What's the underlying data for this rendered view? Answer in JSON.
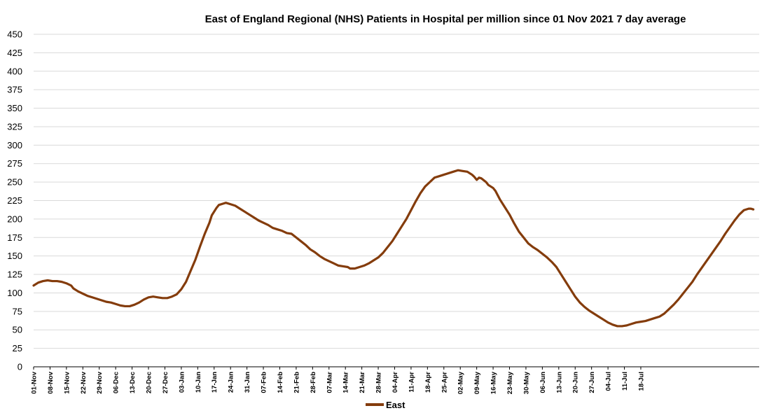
{
  "chart_data": {
    "type": "line",
    "title": "East of England Regional (NHS) Patients in Hospital per million since 01 Nov 2021 7 day average",
    "xlabel": "",
    "ylabel": "",
    "ylim": [
      0,
      450
    ],
    "ytick_step": 25,
    "x_ticks": [
      "01-Nov",
      "08-Nov",
      "15-Nov",
      "22-Nov",
      "29-Nov",
      "06-Dec",
      "13-Dec",
      "20-Dec",
      "27-Dec",
      "03-Jan",
      "10-Jan",
      "17-Jan",
      "24-Jan",
      "31-Jan",
      "07-Feb",
      "14-Feb",
      "21-Feb",
      "28-Feb",
      "07-Mar",
      "14-Mar",
      "21-Mar",
      "28-Mar",
      "04-Apr",
      "11-Apr",
      "18-Apr",
      "25-Apr",
      "02-May",
      "09-May",
      "16-May",
      "23-May",
      "30-May",
      "06-Jun",
      "13-Jun",
      "20-Jun",
      "27-Jun",
      "04-Jul",
      "11-Jul",
      "18-Jul"
    ],
    "legend_position": "bottom",
    "series": [
      {
        "name": "East",
        "color": "#843C0C",
        "points": [
          [
            0,
            110
          ],
          [
            2,
            114
          ],
          [
            4,
            116
          ],
          [
            6,
            117
          ],
          [
            8,
            116
          ],
          [
            10,
            116
          ],
          [
            12,
            115
          ],
          [
            14,
            113
          ],
          [
            16,
            110
          ],
          [
            17,
            106
          ],
          [
            19,
            102
          ],
          [
            21,
            99
          ],
          [
            23,
            96
          ],
          [
            25,
            94
          ],
          [
            27,
            92
          ],
          [
            29,
            90
          ],
          [
            31,
            88
          ],
          [
            33,
            87
          ],
          [
            35,
            85
          ],
          [
            37,
            83
          ],
          [
            39,
            82
          ],
          [
            41,
            82
          ],
          [
            43,
            84
          ],
          [
            45,
            87
          ],
          [
            47,
            91
          ],
          [
            49,
            94
          ],
          [
            51,
            95
          ],
          [
            53,
            94
          ],
          [
            55,
            93
          ],
          [
            57,
            93
          ],
          [
            59,
            95
          ],
          [
            61,
            98
          ],
          [
            63,
            105
          ],
          [
            65,
            115
          ],
          [
            67,
            130
          ],
          [
            69,
            145
          ],
          [
            71,
            163
          ],
          [
            73,
            180
          ],
          [
            75,
            195
          ],
          [
            76,
            205
          ],
          [
            78,
            215
          ],
          [
            79,
            219
          ],
          [
            81,
            221
          ],
          [
            82,
            222
          ],
          [
            84,
            220
          ],
          [
            86,
            218
          ],
          [
            88,
            214
          ],
          [
            90,
            210
          ],
          [
            92,
            206
          ],
          [
            94,
            202
          ],
          [
            96,
            198
          ],
          [
            98,
            195
          ],
          [
            100,
            192
          ],
          [
            102,
            188
          ],
          [
            104,
            186
          ],
          [
            106,
            184
          ],
          [
            108,
            181
          ],
          [
            110,
            180
          ],
          [
            112,
            175
          ],
          [
            114,
            170
          ],
          [
            116,
            165
          ],
          [
            118,
            159
          ],
          [
            120,
            155
          ],
          [
            122,
            150
          ],
          [
            124,
            146
          ],
          [
            126,
            143
          ],
          [
            128,
            140
          ],
          [
            130,
            137
          ],
          [
            132,
            136
          ],
          [
            134,
            135
          ],
          [
            135,
            133
          ],
          [
            137,
            133
          ],
          [
            139,
            135
          ],
          [
            141,
            137
          ],
          [
            143,
            140
          ],
          [
            145,
            144
          ],
          [
            147,
            148
          ],
          [
            149,
            154
          ],
          [
            151,
            162
          ],
          [
            153,
            170
          ],
          [
            155,
            180
          ],
          [
            157,
            190
          ],
          [
            159,
            200
          ],
          [
            161,
            212
          ],
          [
            163,
            224
          ],
          [
            165,
            235
          ],
          [
            167,
            244
          ],
          [
            169,
            250
          ],
          [
            171,
            256
          ],
          [
            173,
            258
          ],
          [
            175,
            260
          ],
          [
            177,
            262
          ],
          [
            179,
            264
          ],
          [
            181,
            266
          ],
          [
            183,
            265
          ],
          [
            185,
            264
          ],
          [
            187,
            260
          ],
          [
            188,
            257
          ],
          [
            189,
            253
          ],
          [
            190,
            256
          ],
          [
            191,
            255
          ],
          [
            193,
            250
          ],
          [
            194,
            246
          ],
          [
            196,
            242
          ],
          [
            197,
            238
          ],
          [
            199,
            226
          ],
          [
            201,
            216
          ],
          [
            203,
            206
          ],
          [
            205,
            194
          ],
          [
            207,
            183
          ],
          [
            209,
            175
          ],
          [
            211,
            167
          ],
          [
            213,
            162
          ],
          [
            215,
            158
          ],
          [
            217,
            153
          ],
          [
            219,
            148
          ],
          [
            221,
            142
          ],
          [
            223,
            135
          ],
          [
            225,
            125
          ],
          [
            227,
            115
          ],
          [
            229,
            105
          ],
          [
            231,
            95
          ],
          [
            233,
            87
          ],
          [
            235,
            81
          ],
          [
            237,
            76
          ],
          [
            239,
            72
          ],
          [
            241,
            68
          ],
          [
            243,
            64
          ],
          [
            245,
            60
          ],
          [
            247,
            57
          ],
          [
            249,
            55
          ],
          [
            251,
            55
          ],
          [
            253,
            56
          ],
          [
            255,
            58
          ],
          [
            257,
            60
          ],
          [
            259,
            61
          ],
          [
            261,
            62
          ],
          [
            263,
            64
          ],
          [
            265,
            66
          ],
          [
            267,
            68
          ],
          [
            269,
            72
          ],
          [
            271,
            78
          ],
          [
            273,
            84
          ],
          [
            275,
            91
          ],
          [
            277,
            99
          ],
          [
            279,
            107
          ],
          [
            281,
            115
          ],
          [
            283,
            125
          ],
          [
            285,
            134
          ],
          [
            287,
            143
          ],
          [
            289,
            152
          ],
          [
            291,
            161
          ],
          [
            293,
            170
          ],
          [
            295,
            180
          ],
          [
            297,
            189
          ],
          [
            299,
            198
          ],
          [
            301,
            206
          ],
          [
            303,
            212
          ],
          [
            305,
            214
          ],
          [
            306,
            214
          ],
          [
            307,
            213
          ]
        ]
      }
    ]
  }
}
